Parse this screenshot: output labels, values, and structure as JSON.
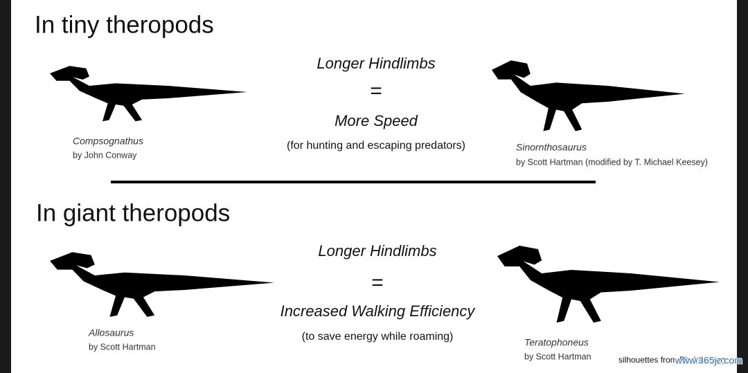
{
  "sections": [
    {
      "title": "In tiny theropods",
      "left": {
        "name": "Compsognathus",
        "credit": "by John Conway"
      },
      "center": {
        "line1": "Longer Hindlimbs",
        "equals": "=",
        "line2": "More Speed",
        "note": "(for hunting and escaping predators)"
      },
      "right": {
        "name": "Sinornthosaurus",
        "credit": "by Scott Hartman (modified by T. Michael Keesey)"
      }
    },
    {
      "title": "In giant theropods",
      "left": {
        "name": "Allosaurus",
        "credit": "by Scott Hartman"
      },
      "center": {
        "line1": "Longer Hindlimbs",
        "equals": "=",
        "line2": "Increased Walking Efficiency",
        "note": "(to save energy while roaming)"
      },
      "right": {
        "name": "Teratophoneus",
        "credit": "by Scott Hartman"
      }
    }
  ],
  "footer": "silhouettes from Phylopic.org",
  "watermark": "www.365jz.com"
}
